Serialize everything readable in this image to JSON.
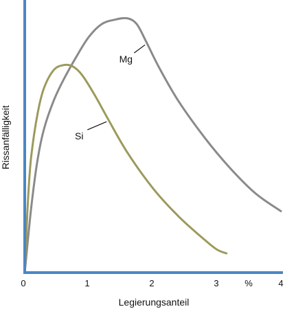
{
  "chart_data": {
    "type": "line",
    "xlabel": "Legierungsanteil",
    "ylabel": "Rissanfälligkeit",
    "x_ticks": [
      "0",
      "1",
      "2",
      "3",
      "4"
    ],
    "x_unit": "%",
    "xlim": [
      0,
      4
    ],
    "ylim": [
      0,
      100
    ],
    "grid": false,
    "colors": {
      "axis": "#4a86c5",
      "mg": "#8a8a8a",
      "si": "#9c9a5c",
      "leader": "#111111"
    },
    "series": [
      {
        "name": "Mg",
        "x": [
          0,
          0.1,
          0.2,
          0.3,
          0.45,
          0.6,
          0.8,
          1.0,
          1.2,
          1.4,
          1.6,
          1.75,
          1.9,
          2.1,
          2.4,
          2.8,
          3.2,
          3.6,
          4.0
        ],
        "y": [
          0,
          25,
          44,
          56,
          67,
          75,
          84,
          92,
          97,
          98.7,
          99.3,
          97,
          90,
          80,
          67,
          53,
          41,
          31,
          24
        ]
      },
      {
        "name": "Si",
        "x": [
          0,
          0.05,
          0.1,
          0.2,
          0.3,
          0.45,
          0.6,
          0.75,
          0.9,
          1.1,
          1.3,
          1.6,
          2.0,
          2.4,
          2.8,
          3.0,
          3.15
        ],
        "y": [
          0,
          28,
          45,
          62,
          72,
          79,
          81,
          80.5,
          77,
          69,
          60,
          47,
          33,
          22,
          13,
          9,
          7.5
        ]
      }
    ],
    "labels": [
      {
        "text": "Mg",
        "series": "Mg",
        "x": 1.58,
        "y": 82
      },
      {
        "text": "Si",
        "series": "Si",
        "x": 0.85,
        "y": 52
      }
    ]
  }
}
